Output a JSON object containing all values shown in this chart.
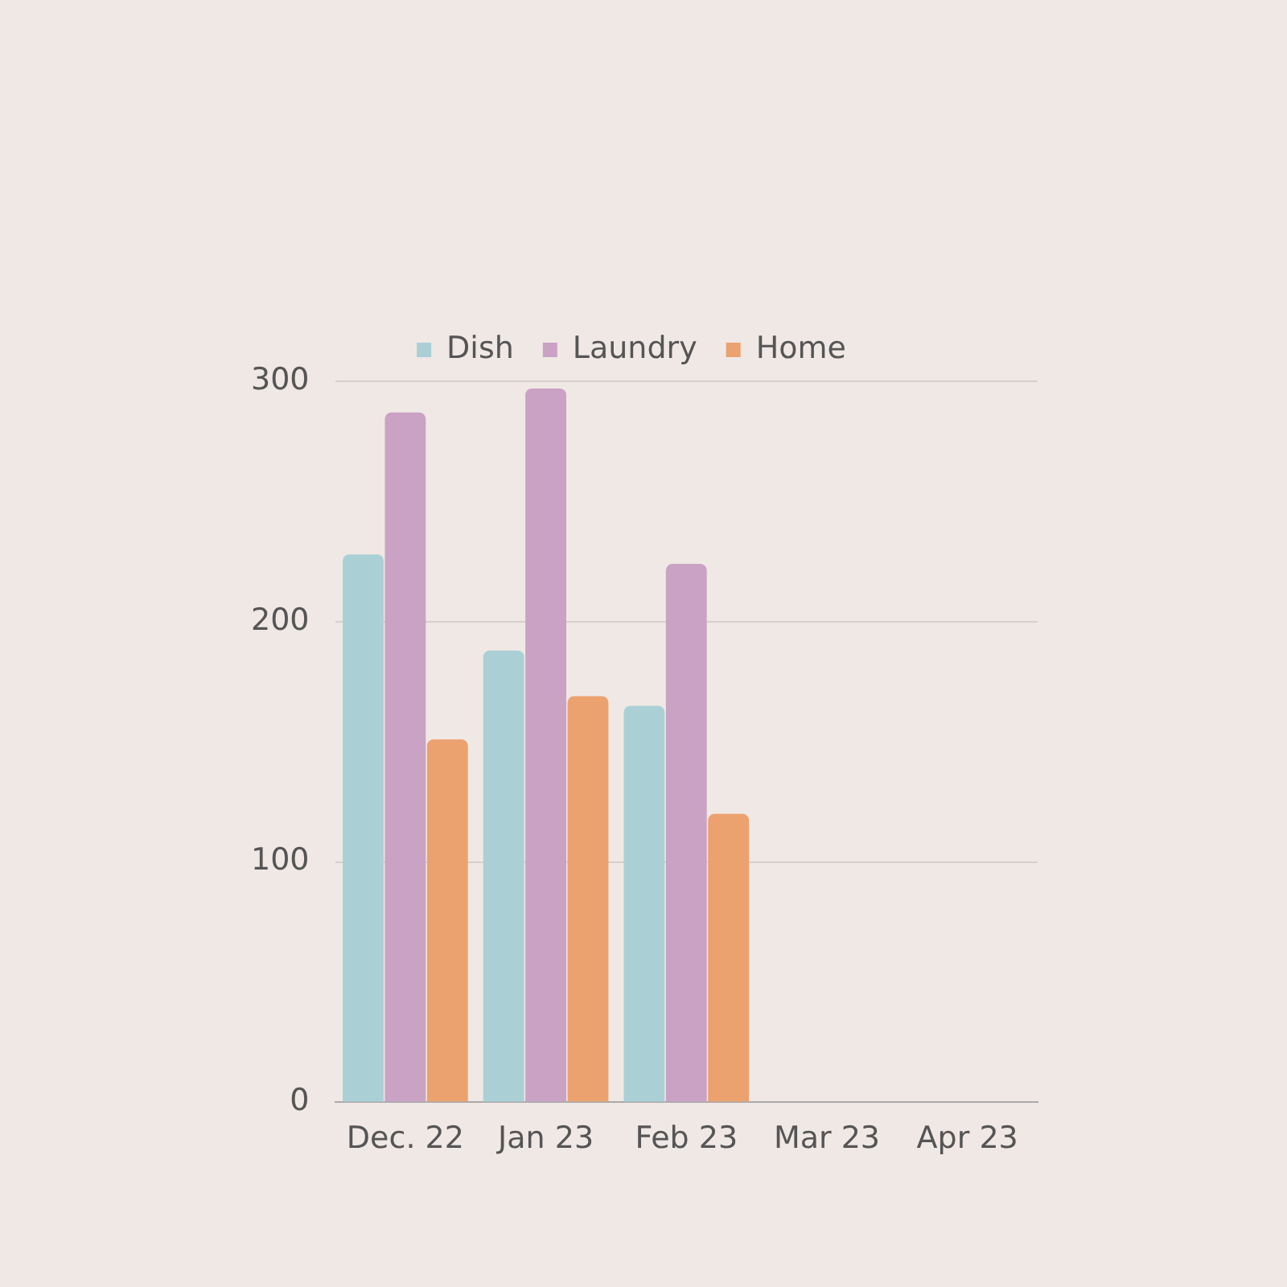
{
  "chart_data": {
    "type": "bar",
    "categories": [
      "Dec. 22",
      "Jan 23",
      "Feb 23",
      "Mar 23",
      "Apr 23"
    ],
    "series": [
      {
        "name": "Dish",
        "color": "#aad0d6",
        "values": [
          228,
          188,
          165,
          null,
          null
        ]
      },
      {
        "name": "Laundry",
        "color": "#c9a2c4",
        "values": [
          287,
          297,
          224,
          null,
          null
        ]
      },
      {
        "name": "Home",
        "color": "#eba26e",
        "values": [
          151,
          169,
          120,
          null,
          null
        ]
      }
    ],
    "ylim": [
      0,
      300
    ],
    "yticks": [
      0,
      100,
      200,
      300
    ],
    "grid": "y",
    "legend": "top"
  }
}
